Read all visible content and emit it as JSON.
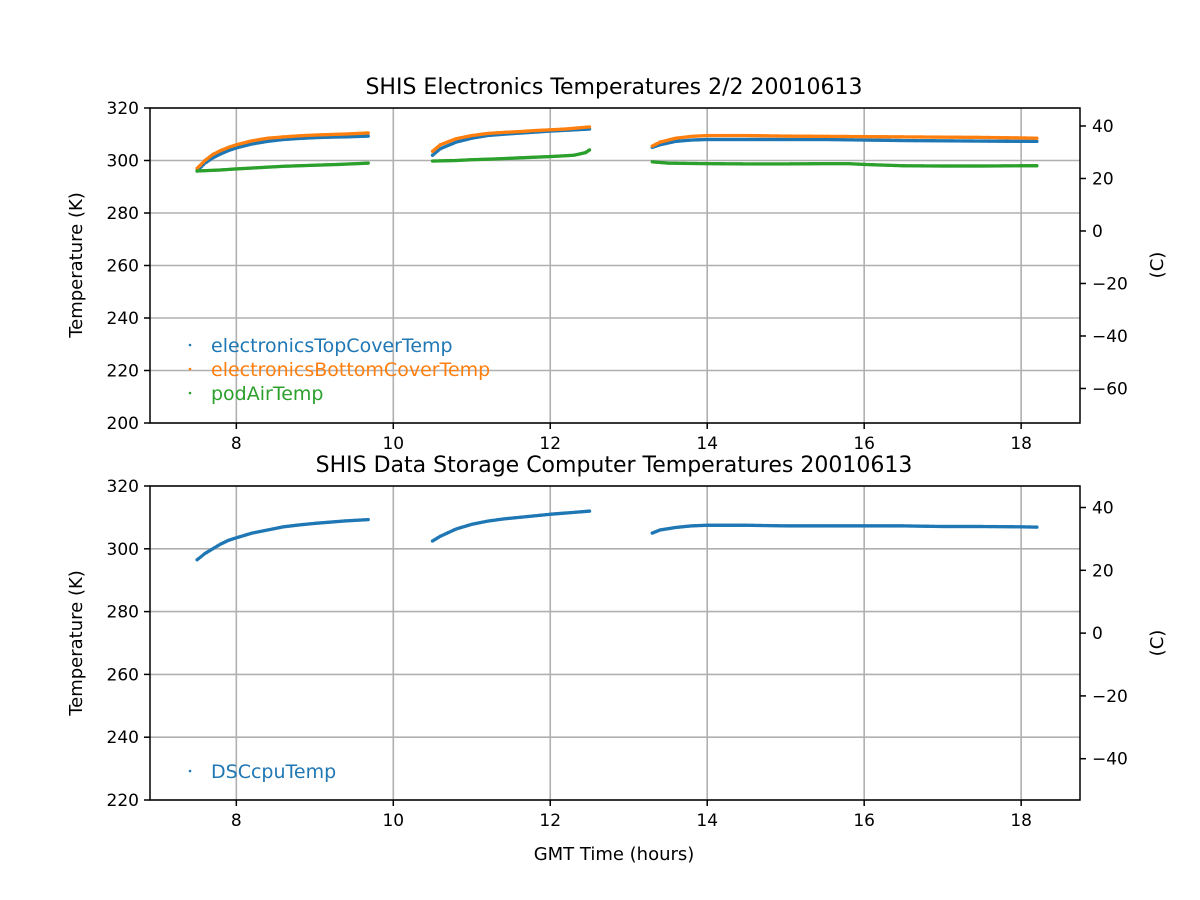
{
  "chart_data": [
    {
      "type": "scatter",
      "title": "SHIS Electronics Temperatures 2/2 20010613",
      "xlabel": "",
      "ylabel": "Temperature (K)",
      "y2label": "(C)",
      "xlim": [
        6.9,
        18.75
      ],
      "ylim": [
        200,
        320
      ],
      "x_ticks": [
        8,
        10,
        12,
        14,
        16,
        18
      ],
      "y_ticks": [
        200,
        220,
        240,
        260,
        280,
        300,
        320
      ],
      "y2_ticks": [
        -60,
        -40,
        -20,
        0,
        20,
        40
      ],
      "y2_ticks_labels": [
        "−60",
        "−40",
        "−20",
        "0",
        "20",
        "40"
      ],
      "y2_offset": 273.15,
      "grid": true,
      "legend_position": "lower-left",
      "series": [
        {
          "name": "electronicsTopCoverTemp",
          "color": "#1f77b4",
          "segments": [
            {
              "x": [
                7.5,
                7.6,
                7.7,
                7.8,
                7.9,
                8.0,
                8.2,
                8.4,
                8.6,
                8.8,
                9.0,
                9.2,
                9.4,
                9.68
              ],
              "y": [
                296.0,
                299.0,
                301.0,
                302.5,
                303.8,
                304.8,
                306.3,
                307.3,
                308.0,
                308.4,
                308.7,
                308.9,
                309.0,
                309.3
              ]
            },
            {
              "x": [
                10.5,
                10.6,
                10.8,
                11.0,
                11.2,
                11.4,
                11.6,
                11.8,
                12.0,
                12.2,
                12.5
              ],
              "y": [
                302.0,
                304.5,
                307.0,
                308.5,
                309.5,
                310.0,
                310.4,
                310.8,
                311.2,
                311.5,
                312.0
              ]
            },
            {
              "x": [
                13.3,
                13.4,
                13.6,
                13.8,
                14.0,
                14.5,
                15.0,
                15.5,
                16.0,
                16.5,
                17.0,
                17.5,
                18.0,
                18.2
              ],
              "y": [
                305.0,
                306.0,
                307.3,
                307.8,
                308.0,
                308.0,
                308.0,
                308.0,
                307.8,
                307.6,
                307.5,
                307.4,
                307.3,
                307.3
              ]
            }
          ]
        },
        {
          "name": "electronicsBottomCoverTemp",
          "color": "#ff7f0e",
          "segments": [
            {
              "x": [
                7.5,
                7.6,
                7.7,
                7.8,
                7.9,
                8.0,
                8.2,
                8.4,
                8.6,
                8.8,
                9.0,
                9.2,
                9.4,
                9.68
              ],
              "y": [
                297.0,
                300.0,
                302.3,
                303.8,
                305.0,
                306.0,
                307.5,
                308.5,
                309.0,
                309.4,
                309.7,
                309.9,
                310.1,
                310.5
              ]
            },
            {
              "x": [
                10.5,
                10.6,
                10.8,
                11.0,
                11.2,
                11.4,
                11.6,
                11.8,
                12.0,
                12.2,
                12.5
              ],
              "y": [
                303.5,
                306.0,
                308.3,
                309.5,
                310.3,
                310.7,
                311.0,
                311.4,
                311.7,
                312.0,
                312.8
              ]
            },
            {
              "x": [
                13.3,
                13.4,
                13.6,
                13.8,
                14.0,
                14.5,
                15.0,
                15.5,
                16.0,
                16.5,
                17.0,
                17.5,
                18.0,
                18.2
              ],
              "y": [
                305.5,
                307.0,
                308.5,
                309.2,
                309.5,
                309.5,
                309.3,
                309.2,
                309.1,
                309.0,
                308.9,
                308.8,
                308.6,
                308.5
              ]
            }
          ]
        },
        {
          "name": "podAirTemp",
          "color": "#2ca02c",
          "segments": [
            {
              "x": [
                7.5,
                7.8,
                8.0,
                8.3,
                8.6,
                9.0,
                9.3,
                9.68
              ],
              "y": [
                296.0,
                296.4,
                296.8,
                297.3,
                297.8,
                298.2,
                298.5,
                299.0
              ]
            },
            {
              "x": [
                10.5,
                10.8,
                11.0,
                11.3,
                11.6,
                12.0,
                12.3,
                12.45,
                12.5
              ],
              "y": [
                299.8,
                300.0,
                300.3,
                300.6,
                301.0,
                301.5,
                302.0,
                303.0,
                304.0
              ]
            },
            {
              "x": [
                13.3,
                13.5,
                14.0,
                14.5,
                15.0,
                15.5,
                15.8,
                16.0,
                16.5,
                17.0,
                17.5,
                18.0,
                18.2
              ],
              "y": [
                299.5,
                299.0,
                298.8,
                298.7,
                298.7,
                298.8,
                298.8,
                298.5,
                298.0,
                297.9,
                297.9,
                298.0,
                298.0
              ]
            }
          ]
        }
      ]
    },
    {
      "type": "scatter",
      "title": "SHIS Data Storage Computer Temperatures 20010613",
      "xlabel": "GMT Time (hours)",
      "ylabel": "Temperature (K)",
      "y2label": "(C)",
      "xlim": [
        6.9,
        18.75
      ],
      "ylim": [
        220,
        320
      ],
      "x_ticks": [
        8,
        10,
        12,
        14,
        16,
        18
      ],
      "y_ticks": [
        220,
        240,
        260,
        280,
        300,
        320
      ],
      "y2_ticks": [
        -40,
        -20,
        0,
        20,
        40
      ],
      "y2_ticks_labels": [
        "−40",
        "−20",
        "0",
        "20",
        "40"
      ],
      "y2_offset": 273.15,
      "grid": true,
      "legend_position": "lower-left",
      "series": [
        {
          "name": "DSCcpuTemp",
          "color": "#1f77b4",
          "segments": [
            {
              "x": [
                7.5,
                7.6,
                7.7,
                7.8,
                7.9,
                8.0,
                8.2,
                8.4,
                8.6,
                8.8,
                9.0,
                9.2,
                9.4,
                9.68
              ],
              "y": [
                296.5,
                298.5,
                300.0,
                301.5,
                302.7,
                303.5,
                305.0,
                306.0,
                307.0,
                307.6,
                308.1,
                308.5,
                308.9,
                309.3
              ]
            },
            {
              "x": [
                10.5,
                10.6,
                10.8,
                11.0,
                11.2,
                11.4,
                11.6,
                11.8,
                12.0,
                12.2,
                12.5
              ],
              "y": [
                302.5,
                304.0,
                306.3,
                307.8,
                308.8,
                309.5,
                310.0,
                310.5,
                311.0,
                311.4,
                312.0
              ]
            },
            {
              "x": [
                13.3,
                13.4,
                13.6,
                13.8,
                14.0,
                14.5,
                15.0,
                15.5,
                16.0,
                16.5,
                17.0,
                17.5,
                18.0,
                18.2
              ],
              "y": [
                305.0,
                306.0,
                306.8,
                307.3,
                307.5,
                307.5,
                307.3,
                307.3,
                307.3,
                307.3,
                307.1,
                307.1,
                307.0,
                306.9
              ]
            }
          ]
        }
      ]
    }
  ]
}
